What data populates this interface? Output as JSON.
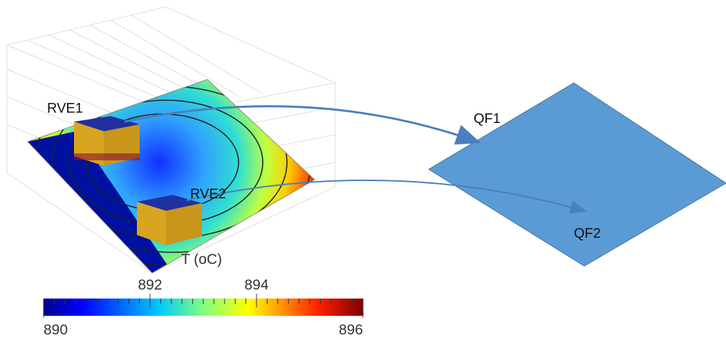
{
  "labels": {
    "rve1": "RVE1",
    "rve2": "RVE2",
    "qf1": "QF1",
    "qf2": "QF2"
  },
  "colorbar": {
    "title": "T (oC)",
    "range": [
      890,
      896
    ],
    "ticks": [
      892,
      894
    ]
  }
}
